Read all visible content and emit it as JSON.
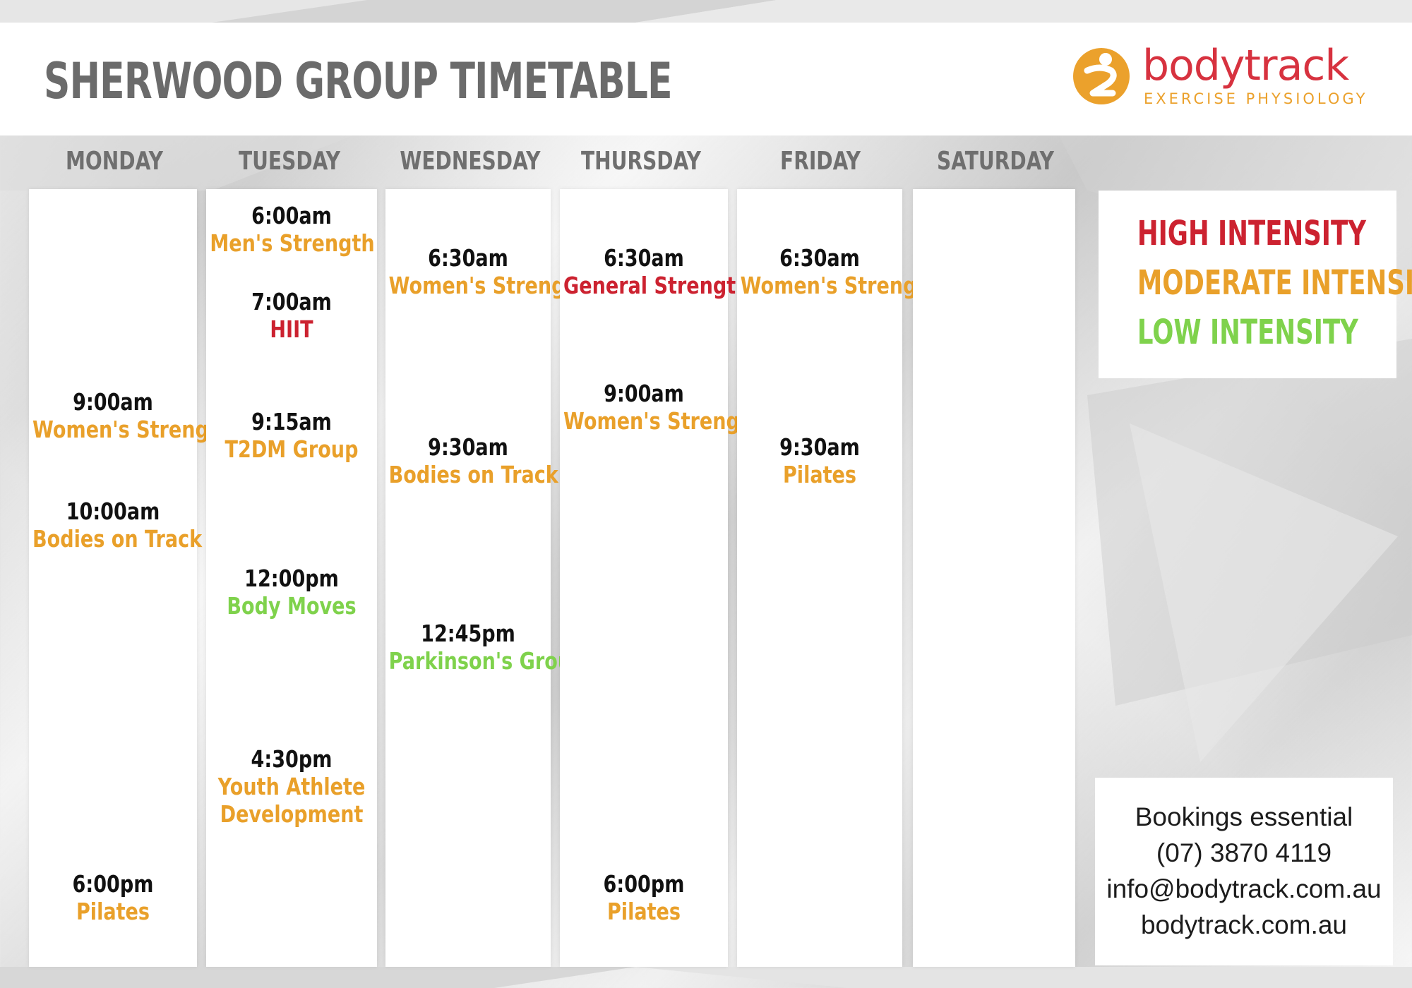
{
  "title": "SHERWOOD GROUP TIMETABLE",
  "logo": {
    "name": "bodytrack",
    "tagline": "EXERCISE  PHYSIOLOGY",
    "icon": "person-figure-icon"
  },
  "colors": {
    "high": "#cc2230",
    "moderate": "#e9a02a",
    "low": "#7fd24c",
    "logo_red": "#d7323f",
    "logo_orange": "#eba12c"
  },
  "days": [
    {
      "name": "MONDAY",
      "sessions": [
        {
          "time": "9:00am",
          "name": "Women's Strength",
          "intensity": "moderate"
        },
        {
          "time": "10:00am",
          "name": "Bodies on Track",
          "intensity": "moderate"
        },
        {
          "time": "6:00pm",
          "name": "Pilates",
          "intensity": "moderate"
        }
      ]
    },
    {
      "name": "TUESDAY",
      "sessions": [
        {
          "time": "6:00am",
          "name": "Men's Strength",
          "intensity": "moderate"
        },
        {
          "time": "7:00am",
          "name": "HIIT",
          "intensity": "high"
        },
        {
          "time": "9:15am",
          "name": "T2DM Group",
          "intensity": "moderate"
        },
        {
          "time": "12:00pm",
          "name": "Body Moves",
          "intensity": "low"
        },
        {
          "time": "4:30pm",
          "name": "Youth Athlete",
          "name2": "Development",
          "intensity": "moderate"
        }
      ]
    },
    {
      "name": "WEDNESDAY",
      "sessions": [
        {
          "time": "6:30am",
          "name": "Women's Strength",
          "intensity": "moderate"
        },
        {
          "time": "9:30am",
          "name": "Bodies on Track",
          "intensity": "moderate"
        },
        {
          "time": "12:45pm",
          "name": "Parkinson's Group",
          "intensity": "low"
        }
      ]
    },
    {
      "name": "THURSDAY",
      "sessions": [
        {
          "time": "6:30am",
          "name": "General Strength",
          "intensity": "high"
        },
        {
          "time": "9:00am",
          "name": "Women's Strength",
          "intensity": "moderate"
        },
        {
          "time": "6:00pm",
          "name": "Pilates",
          "intensity": "moderate"
        }
      ]
    },
    {
      "name": "FRIDAY",
      "sessions": [
        {
          "time": "6:30am",
          "name": "Women's Strength",
          "intensity": "moderate"
        },
        {
          "time": "9:30am",
          "name": "Pilates",
          "intensity": "moderate"
        }
      ]
    },
    {
      "name": "SATURDAY",
      "sessions": []
    }
  ],
  "legend": {
    "high": "HIGH INTENSITY",
    "moderate": "MODERATE INTENSITY",
    "low": "LOW INTENSITY"
  },
  "contact": {
    "line1": "Bookings essential",
    "phone": "(07) 3870 4119",
    "email": "info@bodytrack.com.au",
    "website": "bodytrack.com.au"
  }
}
